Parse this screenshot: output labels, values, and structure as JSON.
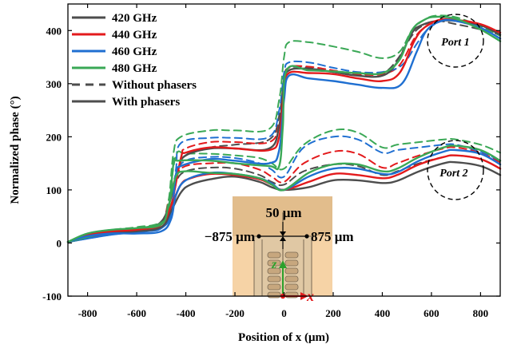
{
  "chart_data": {
    "type": "line",
    "xlabel": "Position of x (μm)",
    "ylabel": "Normalized phase (°)",
    "xlim": [
      -880,
      880
    ],
    "ylim": [
      -100,
      450
    ],
    "xticks": [
      -800,
      -600,
      -400,
      -200,
      0,
      200,
      400,
      600,
      800
    ],
    "yticks": [
      -100,
      0,
      100,
      200,
      300,
      400
    ],
    "legend_position": "top-left",
    "legend": [
      {
        "label": "420 GHz",
        "color": "#4d4d4d",
        "style": "solid"
      },
      {
        "label": "440 GHz",
        "color": "#e31a1c",
        "style": "solid"
      },
      {
        "label": "460 GHz",
        "color": "#1f6fd1",
        "style": "solid"
      },
      {
        "label": "480 GHz",
        "color": "#3aa856",
        "style": "solid"
      },
      {
        "label": "Without phasers",
        "color": "#4d4d4d",
        "style": "dashed"
      },
      {
        "label": "With phasers",
        "color": "#4d4d4d",
        "style": "solid"
      }
    ],
    "annotations": {
      "port1": "Port 1",
      "port2": "Port 2",
      "inset_width": "50 μm",
      "inset_left": "−875 μm",
      "inset_right": "875 μm",
      "inset_z": "z",
      "inset_x": "x"
    },
    "series": [
      {
        "name": "420 GHz",
        "port": 1,
        "phasers": true,
        "x": [
          -880,
          -700,
          -560,
          -500,
          -470,
          -430,
          -400,
          -300,
          -200,
          -60,
          -20,
          0,
          20,
          100,
          200,
          300,
          400,
          460,
          520,
          560,
          620,
          700,
          800,
          880
        ],
        "y": [
          2,
          18,
          28,
          40,
          70,
          140,
          165,
          178,
          178,
          178,
          220,
          300,
          325,
          328,
          322,
          315,
          315,
          340,
          395,
          410,
          418,
          418,
          410,
          392
        ]
      },
      {
        "name": "440 GHz",
        "port": 1,
        "phasers": true,
        "x": [
          -880,
          -700,
          -560,
          -500,
          -460,
          -420,
          -400,
          -300,
          -200,
          -60,
          -20,
          0,
          20,
          100,
          200,
          300,
          400,
          470,
          530,
          570,
          630,
          700,
          800,
          880
        ],
        "y": [
          2,
          20,
          27,
          35,
          70,
          160,
          170,
          180,
          178,
          175,
          200,
          290,
          320,
          320,
          318,
          310,
          305,
          320,
          380,
          405,
          420,
          420,
          412,
          396
        ]
      },
      {
        "name": "460 GHz",
        "port": 1,
        "phasers": true,
        "x": [
          -880,
          -700,
          -560,
          -500,
          -460,
          -440,
          -420,
          -300,
          -200,
          -60,
          -20,
          0,
          20,
          100,
          200,
          300,
          400,
          480,
          540,
          580,
          640,
          700,
          800,
          880
        ],
        "y": [
          2,
          16,
          22,
          28,
          55,
          130,
          145,
          158,
          155,
          150,
          175,
          270,
          315,
          310,
          305,
          298,
          292,
          300,
          360,
          400,
          418,
          418,
          405,
          385
        ]
      },
      {
        "name": "480 GHz",
        "port": 1,
        "phasers": true,
        "x": [
          -880,
          -700,
          -560,
          -500,
          -470,
          -450,
          -430,
          -300,
          -200,
          -60,
          -20,
          -5,
          10,
          100,
          200,
          300,
          400,
          470,
          520,
          570,
          620,
          700,
          800,
          880
        ],
        "y": [
          2,
          22,
          30,
          38,
          60,
          150,
          155,
          155,
          150,
          145,
          145,
          220,
          325,
          325,
          323,
          320,
          320,
          345,
          400,
          420,
          426,
          422,
          402,
          380
        ]
      },
      {
        "name": "420 GHz",
        "port": 1,
        "phasers": false,
        "x": [
          -880,
          -700,
          -560,
          -500,
          -470,
          -430,
          -400,
          -300,
          -200,
          -60,
          -20,
          0,
          20,
          100,
          200,
          300,
          400,
          460,
          520,
          560,
          620,
          700,
          800,
          880
        ],
        "y": [
          2,
          18,
          28,
          40,
          70,
          140,
          165,
          180,
          185,
          195,
          240,
          310,
          330,
          330,
          322,
          318,
          320,
          345,
          390,
          408,
          418,
          412,
          402,
          392
        ]
      },
      {
        "name": "440 GHz",
        "port": 1,
        "phasers": false,
        "x": [
          -880,
          -700,
          -560,
          -500,
          -460,
          -420,
          -400,
          -300,
          -200,
          -60,
          -20,
          0,
          20,
          100,
          200,
          300,
          400,
          470,
          530,
          570,
          630,
          700,
          800,
          880
        ],
        "y": [
          2,
          20,
          27,
          35,
          70,
          160,
          178,
          190,
          190,
          190,
          225,
          300,
          330,
          332,
          325,
          318,
          318,
          335,
          385,
          405,
          418,
          418,
          410,
          396
        ]
      },
      {
        "name": "460 GHz",
        "port": 1,
        "phasers": false,
        "x": [
          -880,
          -700,
          -560,
          -500,
          -460,
          -440,
          -420,
          -300,
          -200,
          -60,
          -20,
          0,
          20,
          100,
          200,
          300,
          400,
          480,
          540,
          580,
          640,
          700,
          800,
          880
        ],
        "y": [
          2,
          16,
          22,
          28,
          55,
          140,
          188,
          198,
          198,
          200,
          250,
          320,
          340,
          340,
          330,
          322,
          322,
          335,
          375,
          400,
          418,
          418,
          405,
          385
        ]
      },
      {
        "name": "480 GHz",
        "port": 1,
        "phasers": false,
        "x": [
          -880,
          -700,
          -560,
          -500,
          -470,
          -450,
          -420,
          -300,
          -200,
          -60,
          -20,
          0,
          20,
          100,
          200,
          300,
          400,
          470,
          520,
          570,
          620,
          700,
          800,
          880
        ],
        "y": [
          2,
          22,
          30,
          40,
          80,
          170,
          200,
          212,
          212,
          215,
          270,
          350,
          378,
          378,
          370,
          360,
          348,
          360,
          400,
          420,
          428,
          425,
          408,
          390
        ]
      },
      {
        "name": "420 GHz",
        "port": 2,
        "phasers": true,
        "x": [
          -880,
          -800,
          -700,
          -600,
          -500,
          -460,
          -420,
          -380,
          -300,
          -200,
          -100,
          -50,
          0,
          100,
          200,
          300,
          400,
          460,
          550,
          650,
          700,
          800,
          880
        ],
        "y": [
          2,
          15,
          20,
          22,
          30,
          60,
          95,
          110,
          120,
          125,
          115,
          105,
          100,
          105,
          118,
          118,
          113,
          117,
          135,
          150,
          152,
          145,
          128
        ]
      },
      {
        "name": "440 GHz",
        "port": 2,
        "phasers": true,
        "x": [
          -880,
          -800,
          -700,
          -600,
          -500,
          -460,
          -420,
          -380,
          -300,
          -200,
          -100,
          -50,
          0,
          100,
          200,
          300,
          400,
          460,
          550,
          650,
          700,
          800,
          880
        ],
        "y": [
          2,
          15,
          22,
          25,
          35,
          70,
          110,
          122,
          130,
          128,
          120,
          110,
          100,
          115,
          130,
          128,
          122,
          128,
          148,
          162,
          165,
          158,
          140
        ]
      },
      {
        "name": "460 GHz",
        "port": 2,
        "phasers": true,
        "x": [
          -880,
          -800,
          -700,
          -600,
          -500,
          -460,
          -440,
          -400,
          -300,
          -200,
          -100,
          -50,
          0,
          100,
          200,
          300,
          400,
          460,
          550,
          650,
          700,
          800,
          880
        ],
        "y": [
          2,
          13,
          18,
          18,
          22,
          45,
          90,
          118,
          132,
          130,
          122,
          112,
          100,
          125,
          140,
          140,
          130,
          133,
          155,
          172,
          175,
          168,
          148
        ]
      },
      {
        "name": "480 GHz",
        "port": 2,
        "phasers": true,
        "x": [
          -880,
          -800,
          -700,
          -600,
          -500,
          -470,
          -440,
          -400,
          -300,
          -200,
          -100,
          -50,
          0,
          100,
          200,
          300,
          400,
          460,
          550,
          650,
          700,
          800,
          880
        ],
        "y": [
          2,
          18,
          25,
          28,
          35,
          70,
          125,
          135,
          132,
          130,
          122,
          110,
          100,
          132,
          148,
          148,
          135,
          140,
          162,
          180,
          183,
          175,
          155
        ]
      },
      {
        "name": "420 GHz",
        "port": 2,
        "phasers": false,
        "x": [
          -880,
          -800,
          -700,
          -600,
          -500,
          -470,
          -440,
          -400,
          -300,
          -200,
          -100,
          -50,
          0,
          80,
          200,
          300,
          400,
          460,
          550,
          650,
          700,
          800,
          880
        ],
        "y": [
          2,
          15,
          20,
          25,
          40,
          70,
          115,
          135,
          142,
          140,
          128,
          115,
          110,
          135,
          148,
          145,
          128,
          135,
          150,
          162,
          165,
          158,
          140
        ]
      },
      {
        "name": "440 GHz",
        "port": 2,
        "phasers": false,
        "x": [
          -880,
          -800,
          -700,
          -600,
          -500,
          -470,
          -440,
          -400,
          -300,
          -200,
          -100,
          -50,
          0,
          80,
          200,
          300,
          400,
          460,
          550,
          650,
          700,
          800,
          880
        ],
        "y": [
          2,
          15,
          22,
          25,
          40,
          80,
          125,
          145,
          150,
          150,
          138,
          125,
          115,
          150,
          172,
          168,
          142,
          150,
          165,
          178,
          180,
          170,
          152
        ]
      },
      {
        "name": "460 GHz",
        "port": 2,
        "phasers": false,
        "x": [
          -880,
          -800,
          -700,
          -600,
          -500,
          -470,
          -440,
          -400,
          -300,
          -200,
          -100,
          -50,
          0,
          80,
          200,
          300,
          400,
          460,
          550,
          650,
          700,
          800,
          880
        ],
        "y": [
          2,
          14,
          20,
          22,
          35,
          70,
          130,
          155,
          162,
          160,
          150,
          138,
          125,
          180,
          200,
          195,
          170,
          175,
          180,
          185,
          185,
          172,
          155
        ]
      },
      {
        "name": "480 GHz",
        "port": 2,
        "phasers": false,
        "x": [
          -880,
          -800,
          -700,
          -600,
          -500,
          -470,
          -440,
          -400,
          -300,
          -200,
          -100,
          -50,
          0,
          80,
          200,
          300,
          400,
          460,
          550,
          650,
          700,
          800,
          880
        ],
        "y": [
          2,
          18,
          25,
          30,
          40,
          80,
          165,
          168,
          168,
          165,
          160,
          150,
          140,
          185,
          212,
          208,
          180,
          185,
          190,
          195,
          195,
          185,
          170
        ]
      }
    ]
  }
}
